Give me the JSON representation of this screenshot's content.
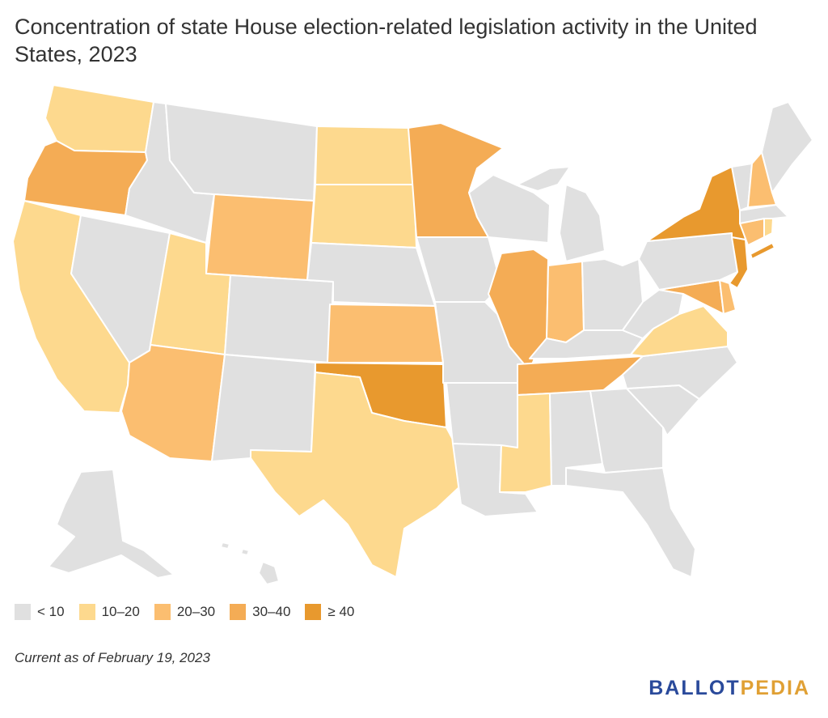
{
  "title": "Concentration of state House election-related legislation activity in the United States, 2023",
  "footnote": "Current as of February 19, 2023",
  "logo": {
    "part1": "BALLOT",
    "part2": "PEDIA"
  },
  "colors": {
    "lt10": "#e0e0e0",
    "b10_20": "#fdd98e",
    "b20_30": "#fbbe70",
    "b30_40": "#f4ac55",
    "ge40": "#e8992e",
    "logo_blue": "#2a4a9b",
    "logo_gold": "#e0a034"
  },
  "legend": [
    {
      "label": "< 10",
      "key": "lt10"
    },
    {
      "label": "10–20",
      "key": "b10_20"
    },
    {
      "label": "20–30",
      "key": "b20_30"
    },
    {
      "label": "30–40",
      "key": "b30_40"
    },
    {
      "label": "≥ 40",
      "key": "ge40"
    }
  ],
  "states": {
    "WA": "b10_20",
    "OR": "b30_40",
    "CA": "b10_20",
    "NV": "lt10",
    "ID": "lt10",
    "MT": "lt10",
    "WY": "b20_30",
    "UT": "b10_20",
    "AZ": "b20_30",
    "CO": "lt10",
    "NM": "lt10",
    "ND": "b10_20",
    "SD": "b10_20",
    "NE": "lt10",
    "KS": "b20_30",
    "OK": "ge40",
    "TX": "b10_20",
    "MN": "b30_40",
    "IA": "lt10",
    "MO": "lt10",
    "AR": "lt10",
    "LA": "lt10",
    "WI": "lt10",
    "IL": "b30_40",
    "MI": "lt10",
    "IN": "b20_30",
    "OH": "lt10",
    "KY": "lt10",
    "TN": "b30_40",
    "MS": "b10_20",
    "AL": "lt10",
    "GA": "lt10",
    "FL": "lt10",
    "SC": "lt10",
    "NC": "lt10",
    "VA": "b10_20",
    "WV": "lt10",
    "MD": "b30_40",
    "DE": "b20_30",
    "PA": "lt10",
    "NJ": "ge40",
    "NY": "ge40",
    "CT": "b20_30",
    "RI": "b10_20",
    "MA": "lt10",
    "VT": "lt10",
    "NH": "b20_30",
    "ME": "lt10",
    "AK": "lt10",
    "HI": "lt10"
  }
}
